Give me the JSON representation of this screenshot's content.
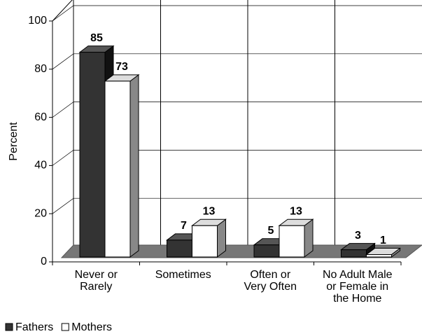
{
  "chart_data": {
    "type": "bar3d",
    "y_label": "Percent",
    "categories": [
      [
        "Never or",
        "Rarely"
      ],
      [
        "Sometimes"
      ],
      [
        "Often or",
        "Very Often"
      ],
      [
        "No Adult Male",
        "or Female in",
        "the Home"
      ]
    ],
    "series": [
      {
        "name": "Fathers",
        "color": "#333333",
        "values": [
          85,
          7,
          5,
          3
        ]
      },
      {
        "name": "Mothers",
        "color": "#ffffff",
        "values": [
          73,
          13,
          13,
          1
        ]
      }
    ],
    "ylim": [
      0,
      100
    ],
    "yticks": [
      0,
      20,
      40,
      60,
      80,
      100
    ],
    "grid": true,
    "legend": "bottom-left"
  }
}
